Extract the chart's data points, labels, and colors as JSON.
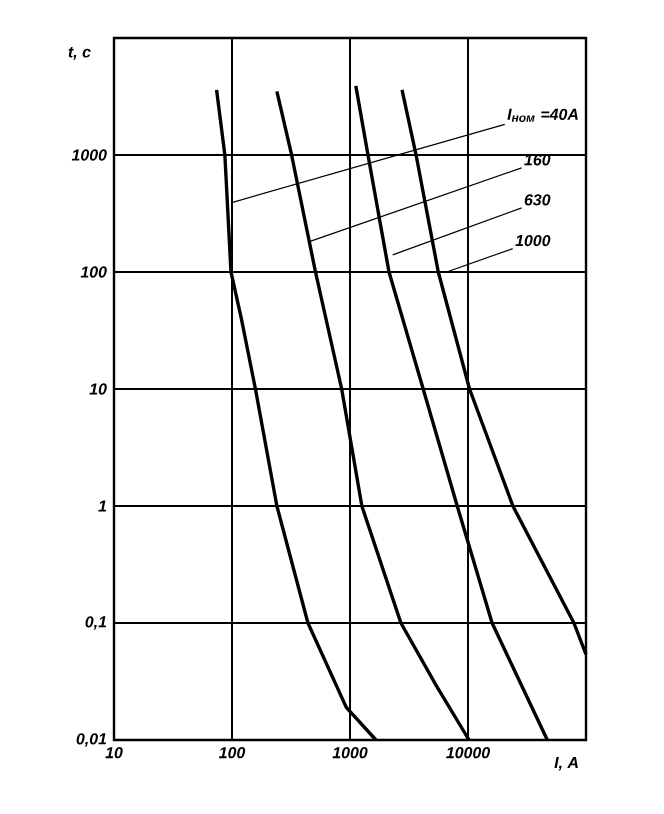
{
  "chart_data": {
    "type": "line",
    "xlabel": "I, A",
    "ylabel": "t, c",
    "log": "xy",
    "grid": true,
    "xlim": [
      10,
      100000
    ],
    "ylim": [
      0.01,
      10000
    ],
    "xticks": [
      10,
      100,
      1000,
      10000
    ],
    "yticks": [
      {
        "value": 0.01,
        "label": "0,01"
      },
      {
        "value": 0.1,
        "label": "0,1"
      },
      1,
      10,
      100,
      1000
    ],
    "series": [
      {
        "color": "#000000",
        "x": [
          74,
          87,
          98,
          120,
          158,
          240,
          440,
          930,
          1660
        ],
        "values": [
          3600,
          1000,
          100,
          40,
          10,
          1,
          0.1,
          0.019,
          0.01
        ]
      },
      {
        "color": "#000000",
        "x": [
          240,
          320,
          510,
          850,
          1260,
          2700,
          5400,
          10200
        ],
        "values": [
          3500,
          1000,
          100,
          10,
          1,
          0.1,
          0.029,
          0.01
        ]
      },
      {
        "color": "#000000",
        "x": [
          1120,
          1420,
          2140,
          4170,
          8100,
          16000,
          47000
        ],
        "values": [
          3900,
          1000,
          100,
          10,
          1,
          0.1,
          0.01
        ]
      },
      {
        "color": "#000000",
        "x": [
          2760,
          3630,
          5600,
          10300,
          24000,
          79000,
          100000
        ],
        "values": [
          3600,
          1000,
          100,
          10,
          1,
          0.1,
          0.054
        ]
      }
    ],
    "annotations": [
      {
        "text": "*I*$_{ном}$ =40A",
        "x": 98,
        "y": 390
      },
      {
        "text": "160",
        "x": 440,
        "y": 180
      },
      {
        "text": "630",
        "x": 2300,
        "y": 140
      },
      {
        "text": "1000",
        "x": 6600,
        "y": 100
      }
    ]
  }
}
